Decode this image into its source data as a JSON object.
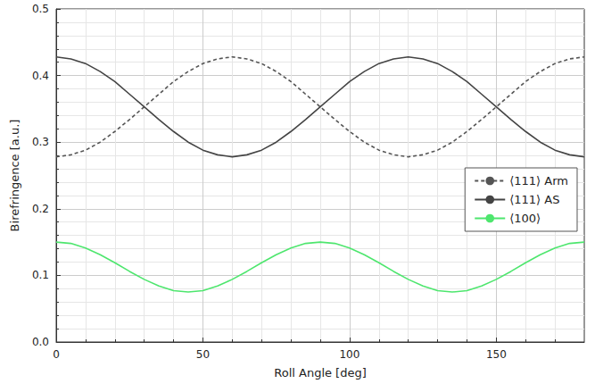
{
  "chart_data": {
    "type": "line",
    "x_label": "Roll Angle [deg]",
    "y_label": "Birefringence [a.u.]",
    "x": [
      0,
      5,
      10,
      15,
      20,
      25,
      30,
      35,
      40,
      45,
      50,
      55,
      60,
      65,
      70,
      75,
      80,
      85,
      90,
      95,
      100,
      105,
      110,
      115,
      120,
      125,
      130,
      135,
      140,
      145,
      150,
      155,
      160,
      165,
      170,
      175,
      180
    ],
    "series": [
      {
        "name": "⟨111⟩ Arm",
        "color": "#555555",
        "line_style": "dashed",
        "values": [
          0.278,
          0.281,
          0.288,
          0.3,
          0.316,
          0.334,
          0.353,
          0.372,
          0.391,
          0.406,
          0.418,
          0.425,
          0.428,
          0.425,
          0.418,
          0.406,
          0.391,
          0.372,
          0.353,
          0.334,
          0.316,
          0.3,
          0.288,
          0.281,
          0.278,
          0.281,
          0.288,
          0.3,
          0.316,
          0.334,
          0.353,
          0.372,
          0.391,
          0.406,
          0.418,
          0.425,
          0.428
        ]
      },
      {
        "name": "⟨111⟩ AS",
        "color": "#444444",
        "line_style": "solid",
        "values": [
          0.428,
          0.425,
          0.418,
          0.406,
          0.391,
          0.372,
          0.353,
          0.334,
          0.316,
          0.3,
          0.288,
          0.281,
          0.278,
          0.281,
          0.288,
          0.3,
          0.316,
          0.334,
          0.353,
          0.372,
          0.391,
          0.406,
          0.418,
          0.425,
          0.428,
          0.425,
          0.418,
          0.406,
          0.391,
          0.372,
          0.353,
          0.334,
          0.316,
          0.3,
          0.288,
          0.281,
          0.278
        ]
      },
      {
        "name": "⟨100⟩",
        "color": "#4ee66e",
        "line_style": "solid",
        "values": [
          0.15,
          0.148,
          0.141,
          0.131,
          0.119,
          0.106,
          0.094,
          0.084,
          0.077,
          0.075,
          0.077,
          0.084,
          0.094,
          0.106,
          0.119,
          0.131,
          0.141,
          0.148,
          0.15,
          0.148,
          0.141,
          0.131,
          0.119,
          0.106,
          0.094,
          0.084,
          0.077,
          0.075,
          0.077,
          0.084,
          0.094,
          0.106,
          0.119,
          0.131,
          0.141,
          0.148,
          0.15
        ]
      }
    ],
    "xlim": [
      0,
      180
    ],
    "xticks": [
      0,
      50,
      100,
      150
    ],
    "ylim": [
      0,
      0.5
    ],
    "yticks": [
      {
        "value": 0,
        "label": "0.0"
      },
      {
        "value": 0.1,
        "label": "0.1"
      },
      {
        "value": 0.2,
        "label": "0.2"
      },
      {
        "value": 0.3,
        "label": "0.3"
      },
      {
        "value": 0.4,
        "label": "0.4"
      },
      {
        "value": 0.5,
        "label": "0.5"
      }
    ],
    "grid": true,
    "legend": "right"
  }
}
